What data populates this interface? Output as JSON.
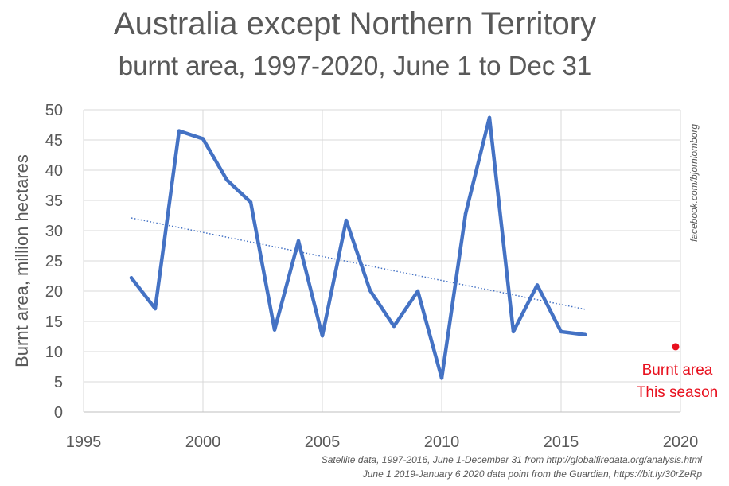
{
  "chart_data": {
    "type": "line",
    "title": "Australia except Northern Territory",
    "subtitle": "burnt area, 1997-2020, June 1 to Dec 31",
    "ylabel": "Burnt area, million hectares",
    "xlim": [
      1995,
      2020
    ],
    "ylim": [
      0,
      50
    ],
    "xticks": [
      1995,
      2000,
      2005,
      2010,
      2015,
      2020
    ],
    "yticks": [
      0,
      5,
      10,
      15,
      20,
      25,
      30,
      35,
      40,
      45,
      50
    ],
    "grid": true,
    "series": [
      {
        "x": [
          1997,
          1998,
          1999,
          2000,
          2001,
          2002,
          2003,
          2004,
          2005,
          2006,
          2007,
          2008,
          2009,
          2010,
          2011,
          2012,
          2013,
          2014,
          2015,
          2016
        ],
        "values": [
          22.2,
          17.1,
          46.5,
          45.2,
          38.4,
          34.7,
          13.6,
          28.3,
          12.6,
          31.7,
          20.1,
          14.2,
          20.0,
          5.6,
          32.8,
          48.7,
          13.3,
          21.0,
          13.3,
          12.8
        ],
        "color": "#4472C4"
      }
    ],
    "trendline": {
      "x": [
        1997,
        2016
      ],
      "y": [
        32.1,
        17.0
      ],
      "color": "#4472C4",
      "style": "dotted"
    },
    "highlight_point": {
      "x": 2019.8,
      "y": 10.8,
      "color": "#E8101E"
    },
    "annotation": {
      "lines": [
        "Burnt area",
        "This season"
      ],
      "color": "#E8101E"
    },
    "credit": "facebook.com/bjornlomborg",
    "source_lines": [
      "Satellite data, 1997-2016, June 1-December 31 from http://globalfiredata.org/analysis.html",
      "June 1 2019-January 6 2020 data point from the Guardian, https://bit.ly/30rZeRp"
    ]
  }
}
